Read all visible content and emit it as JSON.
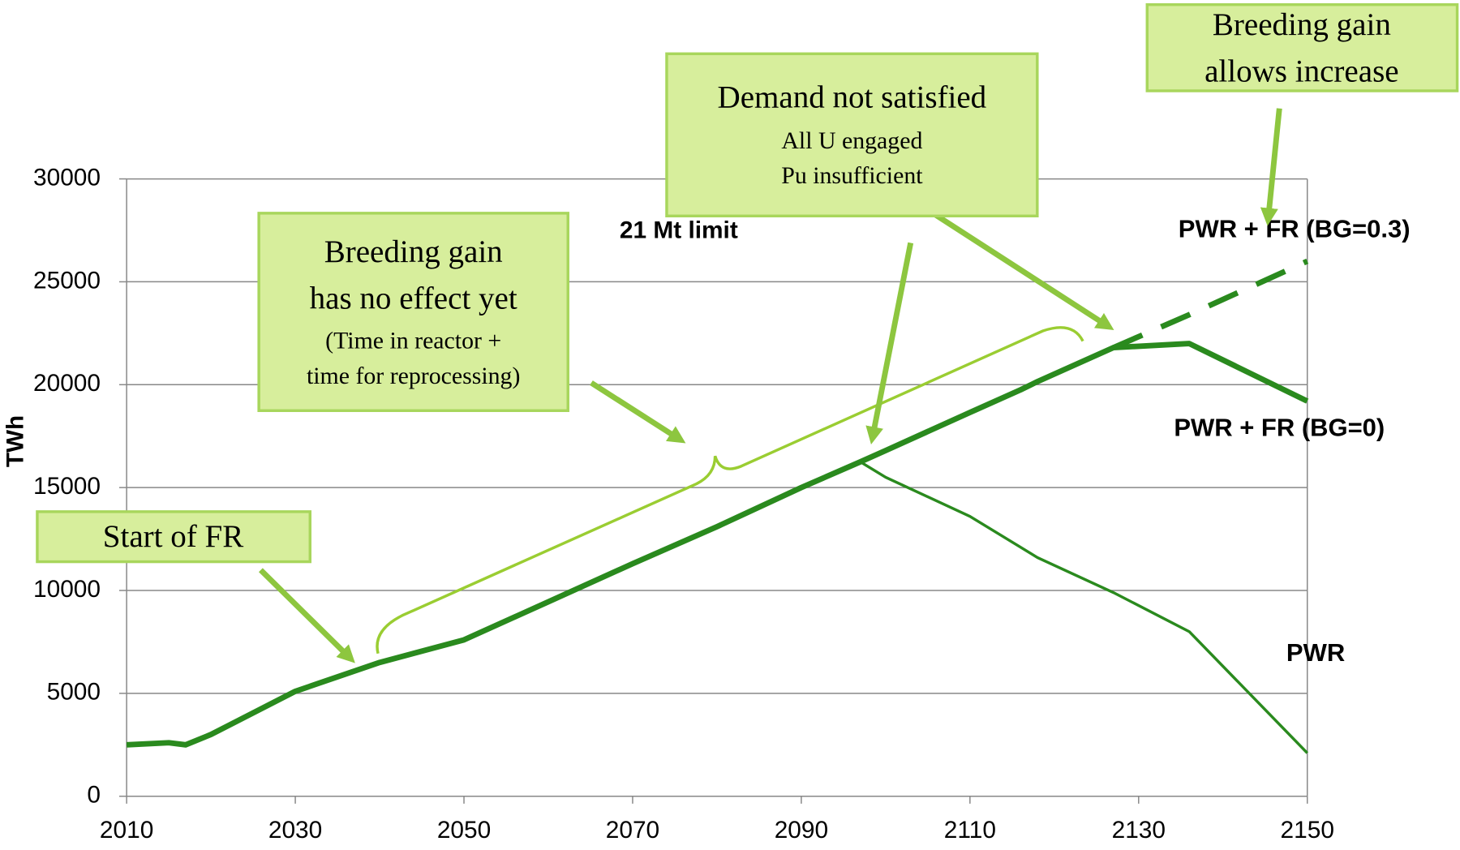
{
  "chart_data": {
    "type": "line",
    "y_label": "TWh",
    "x": [
      2010,
      2015,
      2017,
      2020,
      2030,
      2040,
      2050,
      2060,
      2070,
      2080,
      2090,
      2097,
      2100,
      2110,
      2116,
      2118,
      2127,
      2136,
      2150
    ],
    "series": [
      {
        "name": "PWR",
        "color": "#2a8a1e",
        "values": [
          2500,
          2600,
          2500,
          3000,
          5100,
          6500,
          7600,
          9450,
          11300,
          13100,
          15000,
          16250,
          15500,
          13600,
          12100,
          11600,
          9900,
          8000,
          2100
        ]
      },
      {
        "name": "PWR + FR (BG=0)",
        "color": "#2a8a1e",
        "values": [
          2500,
          2600,
          2500,
          3000,
          5100,
          6500,
          7600,
          9450,
          11300,
          13100,
          15000,
          16250,
          16800,
          18650,
          19750,
          20150,
          21800,
          22000,
          19200
        ]
      },
      {
        "name": "PWR + FR (BG=0.3)",
        "color": "#2a8a1e",
        "dashed": true,
        "values": [
          null,
          null,
          null,
          null,
          null,
          null,
          null,
          null,
          null,
          null,
          null,
          null,
          null,
          null,
          null,
          null,
          21800,
          23400,
          26000
        ]
      }
    ],
    "xlim": [
      2010,
      2150
    ],
    "xticks": [
      2010,
      2030,
      2050,
      2070,
      2090,
      2110,
      2130,
      2150
    ],
    "ylim": [
      0,
      30000
    ],
    "yticks": [
      0,
      5000,
      10000,
      15000,
      20000,
      25000,
      30000
    ],
    "grid": true,
    "annotations": [
      {
        "lines": [
          "Start of FR"
        ]
      },
      {
        "lines": [
          "Breeding gain",
          "has no effect yet",
          "(Time in reactor +",
          "time for reprocessing)"
        ]
      },
      {
        "lines": [
          "Demand not satisfied",
          "All U engaged",
          "Pu insufficient"
        ]
      },
      {
        "lines": [
          "Breeding gain",
          "allows increase"
        ]
      }
    ],
    "limit_label": "21 Mt limit"
  }
}
